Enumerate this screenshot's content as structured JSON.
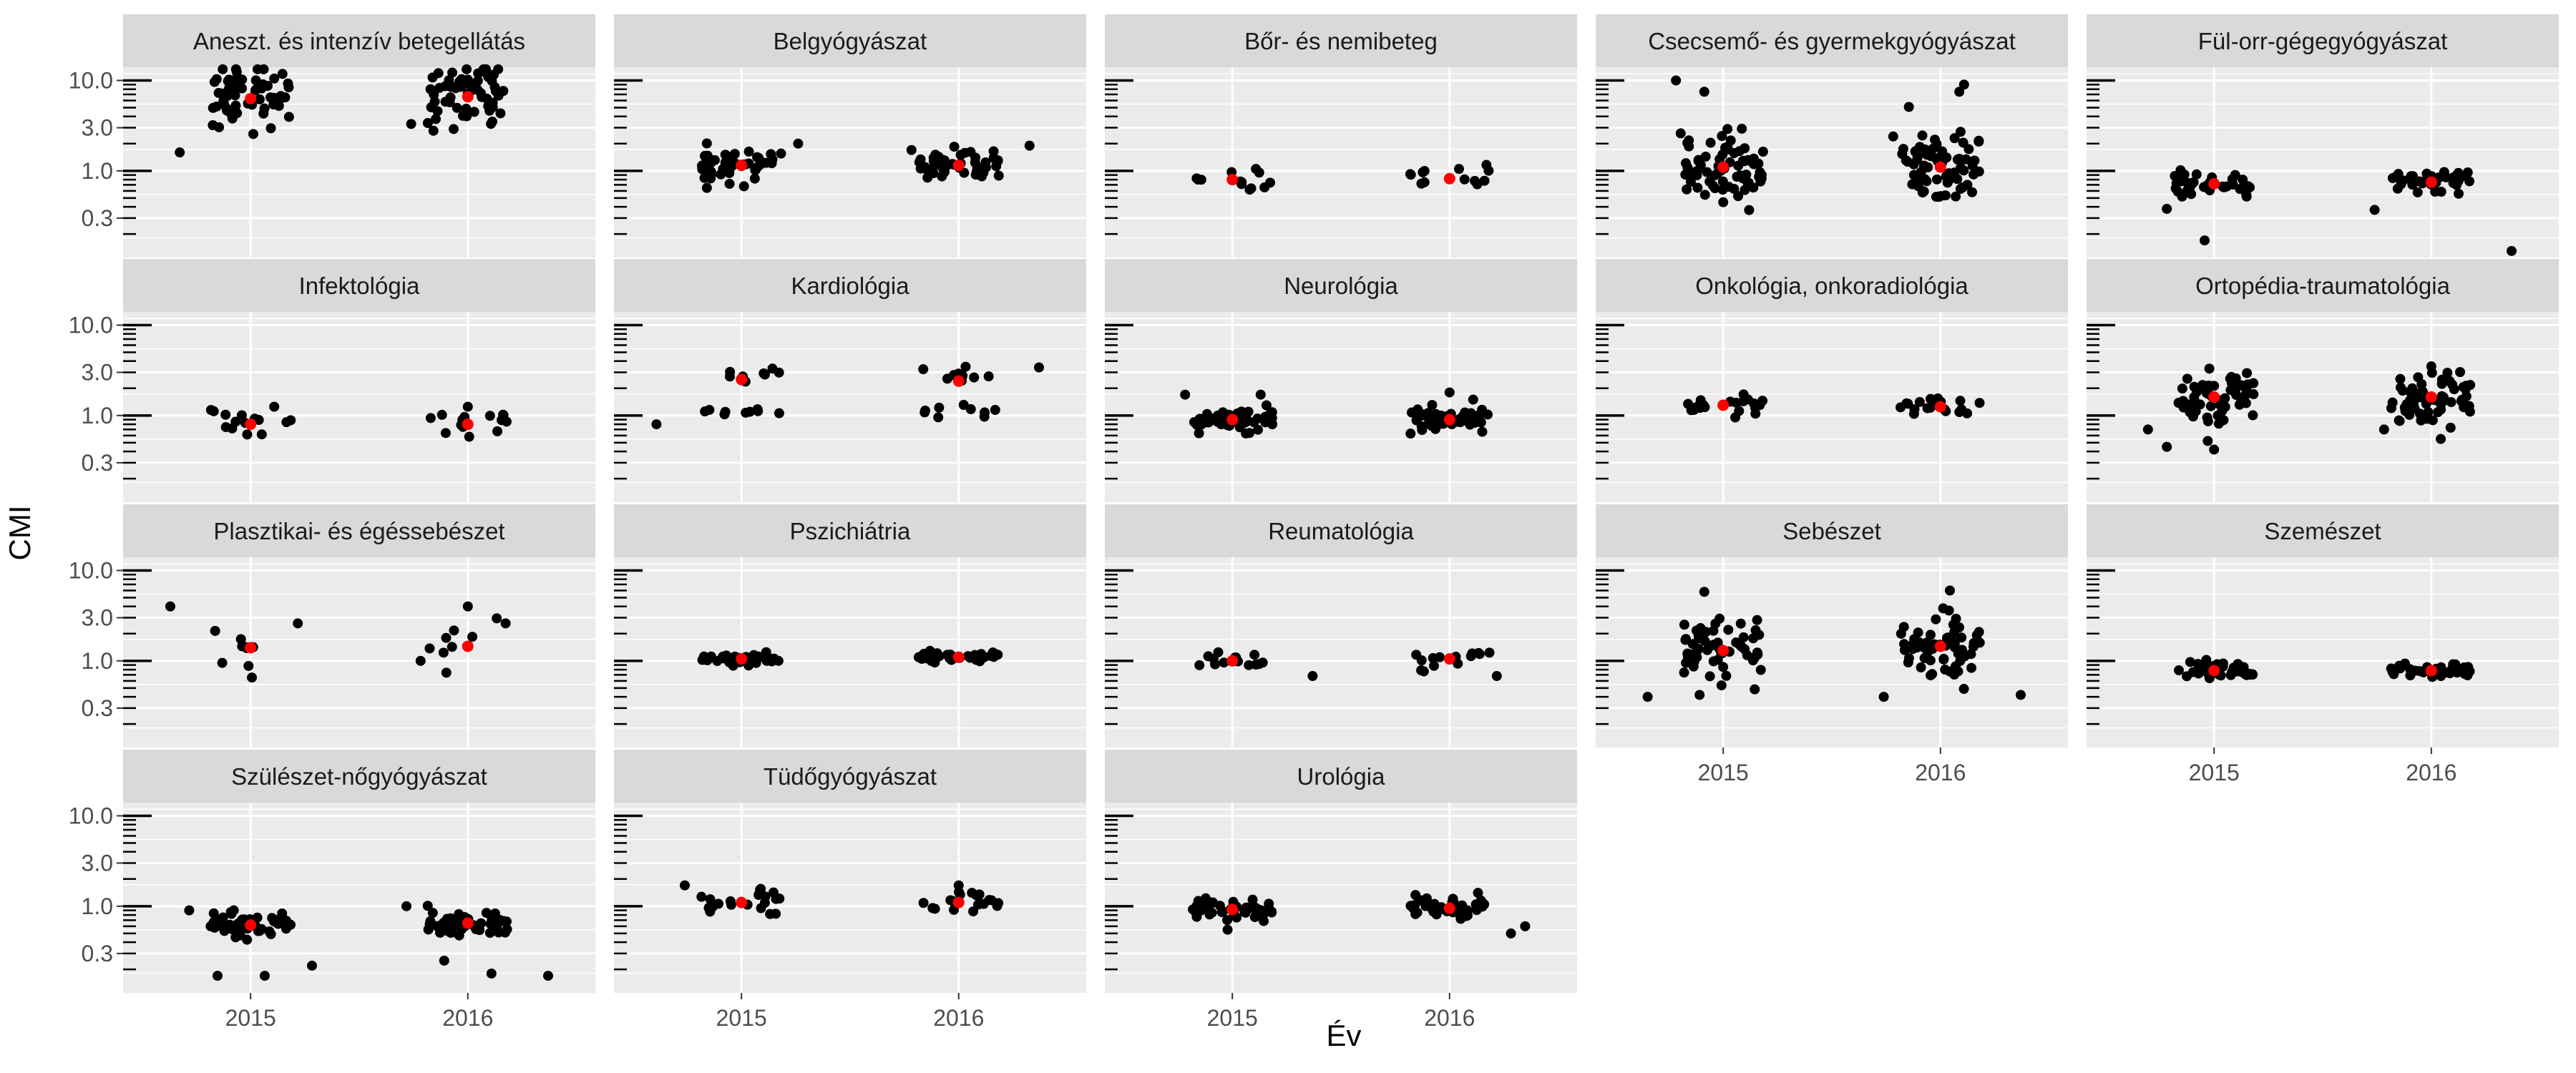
{
  "chart_data": {
    "type": "scatter",
    "xlabel": "Év",
    "ylabel": "CMI",
    "x_categories": [
      "2015",
      "2016"
    ],
    "y_scale": "log",
    "y_ticks": [
      0.3,
      1.0,
      3.0,
      10.0
    ],
    "y_tick_labels": [
      "0.3",
      "1.0",
      "3.0",
      "10.0"
    ],
    "ylim": [
      0.11,
      14
    ],
    "grid": true,
    "colors": {
      "points": "#000000",
      "mean": "#ff0000",
      "panel_bg": "#ebebeb",
      "strip_bg": "#d9d9d9",
      "grid": "#ffffff"
    },
    "panels": [
      {
        "title": "Aneszt. és intenzív betegellátás",
        "mean": [
          6.3,
          6.6
        ],
        "spread": [
          0.22,
          0.22
        ],
        "n": 60,
        "extra": [
          [
            0,
            -0.15,
            1.6
          ],
          [
            0,
            0.05,
            10.5
          ],
          [
            0,
            -0.08,
            3.2
          ],
          [
            1,
            -0.12,
            3.3
          ],
          [
            1,
            0.0,
            10.2
          ],
          [
            1,
            -0.03,
            2.9
          ]
        ]
      },
      {
        "title": "Belgyógyászat",
        "mean": [
          1.15,
          1.15
        ],
        "spread": [
          0.09,
          0.09
        ],
        "n": 50,
        "extra": [
          [
            0,
            0.12,
            2.0
          ],
          [
            1,
            0.15,
            1.9
          ],
          [
            1,
            -0.1,
            1.7
          ]
        ]
      },
      {
        "title": "Bőr- és nemibeteg",
        "mean": [
          0.8,
          0.82
        ],
        "spread": [
          0.06,
          0.06
        ],
        "n": 12,
        "extra": [
          [
            0,
            0.05,
            1.05
          ],
          [
            1,
            0.02,
            1.05
          ]
        ]
      },
      {
        "title": "Csecsemő- és gyermekgyógyászat",
        "mean": [
          1.1,
          1.1
        ],
        "spread": [
          0.2,
          0.2
        ],
        "n": 70,
        "extra": [
          [
            0,
            -0.1,
            10.0
          ],
          [
            0,
            -0.04,
            7.5
          ],
          [
            0,
            -0.09,
            2.6
          ],
          [
            0,
            0.0,
            0.45
          ],
          [
            1,
            0.05,
            9.0
          ],
          [
            1,
            0.04,
            7.5
          ],
          [
            1,
            -0.1,
            2.4
          ],
          [
            1,
            0.03,
            2.3
          ]
        ]
      },
      {
        "title": "Fül-orr-gégegyógyászat",
        "mean": [
          0.72,
          0.75
        ],
        "spread": [
          0.07,
          0.07
        ],
        "n": 40,
        "extra": [
          [
            0,
            -0.1,
            0.38
          ],
          [
            0,
            -0.02,
            0.17
          ],
          [
            1,
            -0.12,
            0.37
          ],
          [
            1,
            0.17,
            0.13
          ]
        ]
      },
      {
        "title": "Infektológia",
        "mean": [
          0.8,
          0.8
        ],
        "spread": [
          0.07,
          0.07
        ],
        "n": 14,
        "extra": [
          [
            0,
            0.05,
            1.25
          ],
          [
            1,
            0.0,
            1.25
          ]
        ]
      },
      {
        "title": "Kardiológia",
        "mean": [
          2.5,
          2.4
        ],
        "spread": [
          0.05,
          0.05
        ],
        "n": 18,
        "bimodal": true,
        "extra": [
          [
            0,
            -0.18,
            0.8
          ],
          [
            1,
            0.17,
            3.4
          ]
        ]
      },
      {
        "title": "Neurológia",
        "mean": [
          0.9,
          0.9
        ],
        "spread": [
          0.06,
          0.06
        ],
        "n": 50,
        "extra": [
          [
            0,
            -0.1,
            1.7
          ],
          [
            0,
            0.06,
            1.7
          ],
          [
            1,
            0.0,
            1.8
          ],
          [
            1,
            0.05,
            1.5
          ]
        ]
      },
      {
        "title": "Onkológia, onkoradiológia",
        "mean": [
          1.3,
          1.25
        ],
        "spread": [
          0.05,
          0.05
        ],
        "n": 22,
        "extra": []
      },
      {
        "title": "Ortopédia-traumatológia",
        "mean": [
          1.6,
          1.6
        ],
        "spread": [
          0.14,
          0.14
        ],
        "n": 60,
        "extra": [
          [
            0,
            -0.01,
            3.3
          ],
          [
            0,
            -0.14,
            0.7
          ],
          [
            0,
            -0.1,
            0.45
          ],
          [
            0,
            0.0,
            0.42
          ],
          [
            1,
            0.0,
            3.5
          ],
          [
            1,
            0.02,
            0.55
          ],
          [
            1,
            -0.1,
            0.7
          ]
        ]
      },
      {
        "title": "Plasztikai- és égéssebészet",
        "mean": [
          1.4,
          1.45
        ],
        "spread": [
          0.18,
          0.18
        ],
        "n": 8,
        "sparse": true,
        "extra": [
          [
            0,
            -0.17,
            4.0
          ],
          [
            0,
            0.1,
            2.6
          ],
          [
            0,
            -0.06,
            0.95
          ],
          [
            1,
            0.0,
            4.0
          ],
          [
            1,
            0.08,
            2.6
          ],
          [
            1,
            -0.1,
            1.0
          ]
        ]
      },
      {
        "title": "Pszichiátria",
        "mean": [
          1.05,
          1.1
        ],
        "spread": [
          0.03,
          0.03
        ],
        "n": 40,
        "extra": []
      },
      {
        "title": "Reumatológia",
        "mean": [
          1.0,
          1.05
        ],
        "spread": [
          0.05,
          0.05
        ],
        "n": 14,
        "extra": [
          [
            0,
            0.17,
            0.68
          ],
          [
            1,
            0.1,
            0.68
          ]
        ]
      },
      {
        "title": "Sebészet",
        "mean": [
          1.3,
          1.45
        ],
        "spread": [
          0.18,
          0.18
        ],
        "n": 60,
        "extra": [
          [
            0,
            -0.04,
            5.8
          ],
          [
            0,
            -0.16,
            0.4
          ],
          [
            0,
            -0.05,
            0.42
          ],
          [
            1,
            0.02,
            6.0
          ],
          [
            1,
            0.17,
            0.42
          ],
          [
            1,
            -0.12,
            0.4
          ]
        ]
      },
      {
        "title": "Szemészet",
        "mean": [
          0.78,
          0.78
        ],
        "spread": [
          0.05,
          0.05
        ],
        "n": 40,
        "extra": []
      },
      {
        "title": "Szülészet-nőgyógyászat",
        "mean": [
          0.62,
          0.65
        ],
        "spread": [
          0.07,
          0.07
        ],
        "n": 50,
        "extra": [
          [
            0,
            -0.13,
            0.9
          ],
          [
            0,
            -0.07,
            0.17
          ],
          [
            0,
            0.03,
            0.17
          ],
          [
            0,
            0.13,
            0.22
          ],
          [
            1,
            -0.13,
            1.0
          ],
          [
            1,
            0.05,
            0.18
          ],
          [
            1,
            0.17,
            0.17
          ],
          [
            1,
            -0.05,
            0.25
          ]
        ]
      },
      {
        "title": "Tüdőgyógyászat",
        "mean": [
          1.1,
          1.1
        ],
        "spread": [
          0.06,
          0.06
        ],
        "n": 20,
        "extra": [
          [
            0,
            -0.12,
            1.7
          ],
          [
            1,
            0.0,
            1.7
          ]
        ]
      },
      {
        "title": "Urológia",
        "mean": [
          0.92,
          0.95
        ],
        "spread": [
          0.06,
          0.06
        ],
        "n": 45,
        "extra": [
          [
            0,
            -0.01,
            0.55
          ],
          [
            1,
            0.13,
            0.5
          ],
          [
            1,
            0.16,
            0.6
          ]
        ]
      }
    ]
  }
}
